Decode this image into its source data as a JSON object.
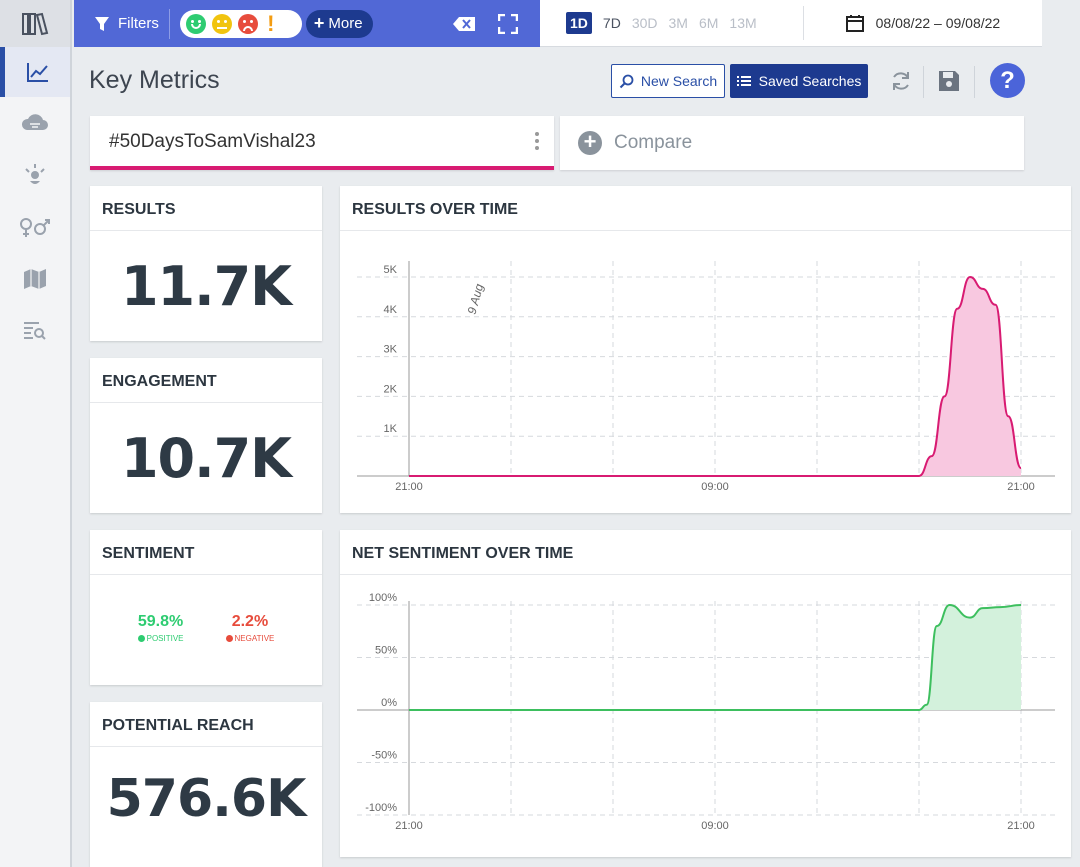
{
  "topbar": {
    "filters_label": "Filters",
    "more_label": "More",
    "ranges": [
      "1D",
      "7D",
      "30D",
      "3M",
      "6M",
      "13M"
    ],
    "active_range": "1D",
    "date_range": "08/08/22 – 09/08/22"
  },
  "header": {
    "title": "Key Metrics",
    "new_search_label": "New Search",
    "saved_searches_label": "Saved Searches",
    "help_label": "?"
  },
  "searches": {
    "active_query": "#50DaysToSamVishal23",
    "compare_label": "Compare"
  },
  "cards": {
    "results": {
      "title": "RESULTS",
      "value": "11.7K"
    },
    "engagement": {
      "title": "ENGAGEMENT",
      "value": "10.7K"
    },
    "sentiment": {
      "title": "SENTIMENT",
      "positive_value": "59.8%",
      "positive_label": "POSITIVE",
      "negative_value": "2.2%",
      "negative_label": "NEGATIVE"
    },
    "reach": {
      "title": "POTENTIAL REACH",
      "value": "576.6K"
    }
  },
  "chart_data": [
    {
      "type": "area",
      "title": "RESULTS OVER TIME",
      "x_ticks": [
        "21:00",
        "09:00",
        "21:00"
      ],
      "y_ticks": [
        "1K",
        "2K",
        "3K",
        "4K",
        "5K"
      ],
      "ylim": [
        0,
        5300
      ],
      "annotation": "9 Aug",
      "x": [
        0,
        16,
        20,
        20.5,
        21,
        21.5,
        22,
        22.5,
        23,
        23.5,
        24
      ],
      "y": [
        0,
        0,
        0,
        500,
        2000,
        4200,
        5000,
        4700,
        4300,
        1500,
        200
      ],
      "color": "#d81b72",
      "fill": "#f8c8e0"
    },
    {
      "type": "area",
      "title": "NET SENTIMENT OVER TIME",
      "x_ticks": [
        "21:00",
        "09:00",
        "21:00"
      ],
      "y_ticks": [
        "100%",
        "50%",
        "0%",
        "-50%",
        "-100%"
      ],
      "ylim": [
        -100,
        100
      ],
      "x": [
        0,
        20,
        20.3,
        20.7,
        21.2,
        22,
        22.5,
        23.2,
        24
      ],
      "y": [
        0,
        0,
        5,
        80,
        100,
        88,
        97,
        98,
        100
      ],
      "color": "#3dbf5e",
      "fill": "#d3f1dc"
    }
  ]
}
